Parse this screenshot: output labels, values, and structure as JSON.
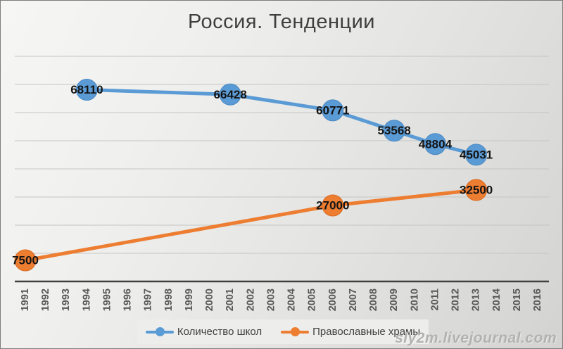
{
  "title": "Россия. Тенденции",
  "watermark": "sly2m.livejournal.com",
  "legend": {
    "items": [
      {
        "label": "Количество школ",
        "color": "#5B9BD5"
      },
      {
        "label": "Православные храмы",
        "color": "#ED7D31"
      }
    ]
  },
  "chart_data": {
    "type": "line",
    "title": "Россия. Тенденции",
    "x_categories": [
      "1991",
      "1992",
      "1993",
      "1994",
      "1995",
      "1996",
      "1997",
      "1998",
      "1999",
      "2000",
      "2001",
      "2002",
      "2003",
      "2004",
      "2005",
      "2006",
      "2007",
      "2008",
      "2009",
      "2010",
      "2011",
      "2012",
      "2013",
      "2014",
      "2015",
      "2016"
    ],
    "series": [
      {
        "name": "Количество школ",
        "color": "#5B9BD5",
        "marker_border": "#4a88c2",
        "points": [
          {
            "year": 1994,
            "value": 68110,
            "label": "68110"
          },
          {
            "year": 2001,
            "value": 66428,
            "label": "66428"
          },
          {
            "year": 2006,
            "value": 60771,
            "label": "60771"
          },
          {
            "year": 2009,
            "value": 53568,
            "label": "53568"
          },
          {
            "year": 2011,
            "value": 48804,
            "label": "48804"
          },
          {
            "year": 2013,
            "value": 45031,
            "label": "45031"
          }
        ]
      },
      {
        "name": "Православные храмы",
        "color": "#ED7D31",
        "marker_border": "#d9691e",
        "points": [
          {
            "year": 1991,
            "value": 7500,
            "label": "7500"
          },
          {
            "year": 2006,
            "value": 27000,
            "label": "27000"
          },
          {
            "year": 2013,
            "value": 32500,
            "label": "32500"
          }
        ]
      }
    ],
    "ylim": [
      0,
      80000
    ],
    "gridline_interval": 10000,
    "grid": true,
    "y_axis_labels": false,
    "legend_position": "bottom",
    "data_labels": "center",
    "xlabel": "",
    "ylabel": ""
  }
}
